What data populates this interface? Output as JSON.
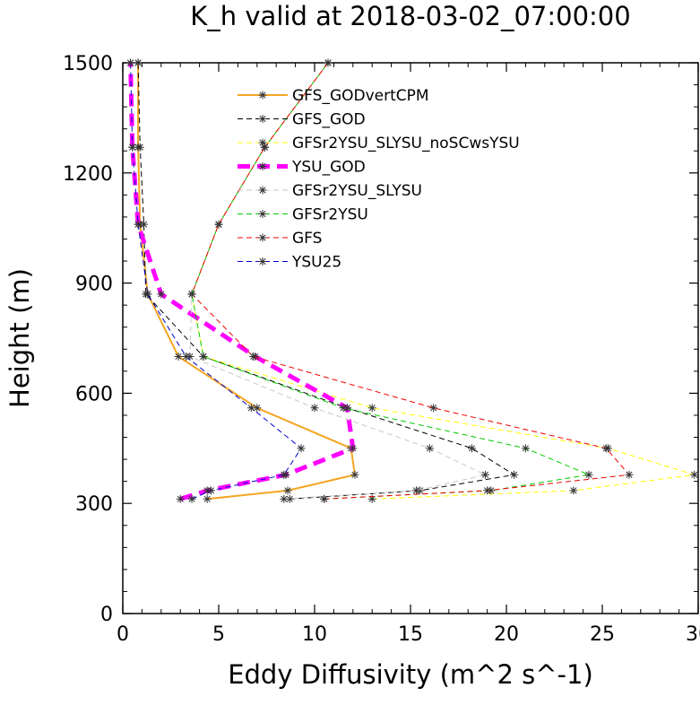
{
  "chart_data": {
    "type": "line",
    "title": "K_h valid at 2018-03-02_07:00:00",
    "xlabel": "Eddy Diffusivity (m^2 s^-1)",
    "ylabel": "Height (m)",
    "xlim": [
      0,
      30
    ],
    "ylim": [
      0,
      1500
    ],
    "x_ticks": [
      "0",
      "5",
      "10",
      "15",
      "20",
      "25",
      "30"
    ],
    "y_ticks": [
      "0",
      "300",
      "600",
      "900",
      "1200",
      "1500"
    ],
    "legend_position": "top-center",
    "series": [
      {
        "name": "GFS_GODvertCPM",
        "color": "#f5a623",
        "dash": "solid",
        "width": 2,
        "points": [
          [
            4.4,
            312
          ],
          [
            8.6,
            335
          ],
          [
            12.1,
            378
          ],
          [
            11.9,
            450
          ],
          [
            7,
            560
          ],
          [
            2.9,
            700
          ],
          [
            1.3,
            870
          ],
          [
            0.9,
            1060
          ],
          [
            0.8,
            1270
          ],
          [
            0.8,
            1500
          ]
        ]
      },
      {
        "name": "GFS_GOD",
        "color": "#000000",
        "dash": "6,4",
        "width": 1,
        "points": [
          [
            8.7,
            312
          ],
          [
            15.5,
            335
          ],
          [
            20.4,
            378
          ],
          [
            18.2,
            450
          ],
          [
            11.7,
            560
          ],
          [
            4.2,
            700
          ],
          [
            1.2,
            870
          ],
          [
            1.1,
            1060
          ],
          [
            0.9,
            1270
          ],
          [
            0.8,
            1500
          ]
        ]
      },
      {
        "name": "GFSr2YSU_SLYSU_noSCwsYSU",
        "color": "#ffff00",
        "dash": "6,4",
        "width": 1,
        "points": [
          [
            13.0,
            312
          ],
          [
            23.5,
            335
          ],
          [
            29.8,
            378
          ],
          [
            25.3,
            450
          ],
          [
            13.0,
            560
          ],
          [
            4.2,
            700
          ],
          [
            3.6,
            870
          ],
          [
            5.0,
            1060
          ],
          [
            7.4,
            1270
          ],
          [
            10.7,
            1500
          ]
        ]
      },
      {
        "name": "YSU_GOD",
        "color": "#ff00ff",
        "dash": "14,8",
        "width": 5,
        "points": [
          [
            3.0,
            312
          ],
          [
            4.4,
            335
          ],
          [
            8.5,
            378
          ],
          [
            12.0,
            450
          ],
          [
            11.7,
            560
          ],
          [
            6.9,
            700
          ],
          [
            2.0,
            870
          ],
          [
            0.8,
            1060
          ],
          [
            0.5,
            1270
          ],
          [
            0.4,
            1500
          ]
        ]
      },
      {
        "name": "GFSr2YSU_SLYSU",
        "color": "#c8c8c8",
        "dash": "6,4",
        "width": 1,
        "points": [
          [
            8.4,
            312
          ],
          [
            15.3,
            335
          ],
          [
            18.9,
            378
          ],
          [
            16.0,
            450
          ],
          [
            10.0,
            560
          ],
          [
            3.5,
            700
          ],
          [
            3.6,
            870
          ],
          [
            5.0,
            1060
          ],
          [
            7.4,
            1270
          ],
          [
            10.7,
            1500
          ]
        ]
      },
      {
        "name": "GFSr2YSU",
        "color": "#00cc00",
        "dash": "6,4",
        "width": 1,
        "points": [
          [
            10.5,
            312
          ],
          [
            19.2,
            335
          ],
          [
            24.3,
            378
          ],
          [
            21.0,
            450
          ],
          [
            11.5,
            560
          ],
          [
            4.2,
            700
          ],
          [
            3.6,
            870
          ],
          [
            5.0,
            1060
          ],
          [
            7.4,
            1270
          ],
          [
            10.7,
            1500
          ]
        ]
      },
      {
        "name": "GFS",
        "color": "#ee0000",
        "dash": "6,4",
        "width": 1,
        "points": [
          [
            10.5,
            312
          ],
          [
            19.0,
            335
          ],
          [
            26.4,
            378
          ],
          [
            25.2,
            450
          ],
          [
            16.2,
            560
          ],
          [
            6.8,
            700
          ],
          [
            3.6,
            870
          ],
          [
            5.0,
            1060
          ],
          [
            7.4,
            1270
          ],
          [
            10.7,
            1500
          ]
        ]
      },
      {
        "name": "YSU25",
        "color": "#0000cc",
        "dash": "6,4",
        "width": 1,
        "points": [
          [
            3.6,
            312
          ],
          [
            4.6,
            335
          ],
          [
            8.4,
            378
          ],
          [
            9.3,
            450
          ],
          [
            6.7,
            560
          ],
          [
            3.3,
            700
          ],
          [
            1.3,
            870
          ],
          [
            0.8,
            1060
          ],
          [
            0.5,
            1270
          ],
          [
            0.4,
            1500
          ]
        ]
      }
    ]
  }
}
